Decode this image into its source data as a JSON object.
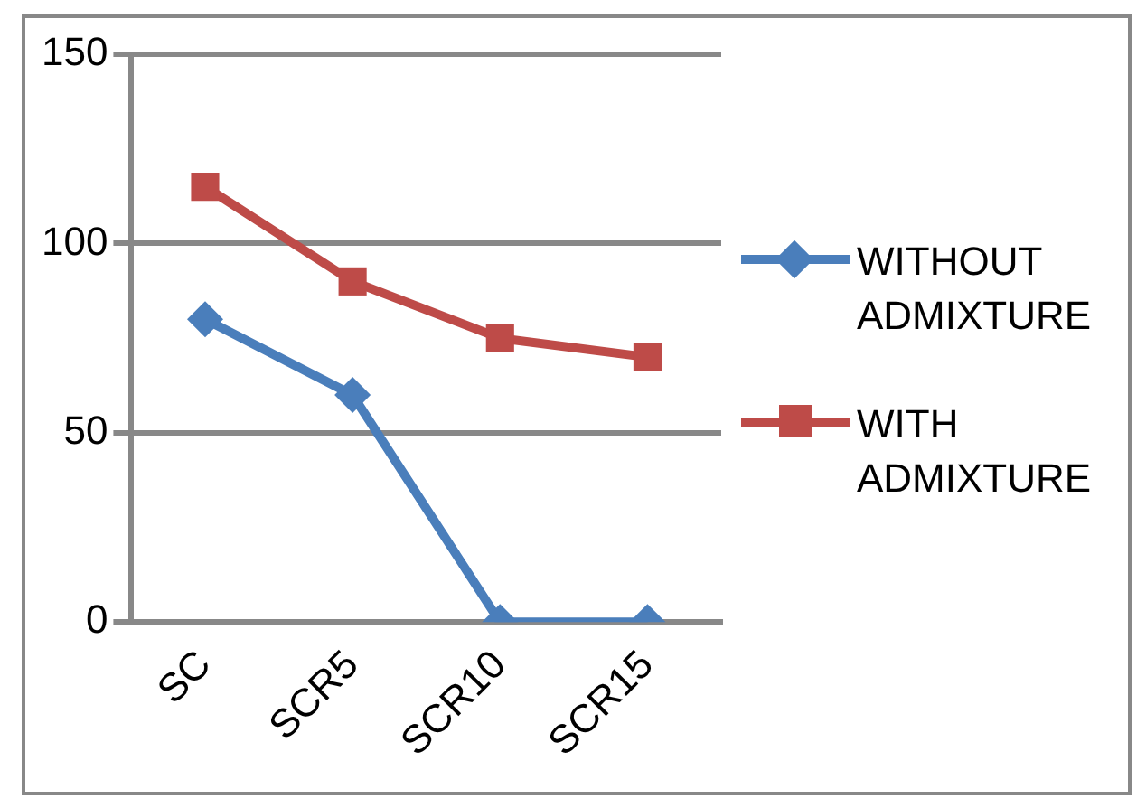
{
  "chart_data": {
    "type": "line",
    "categories": [
      "SC",
      "SCR5",
      "SCR10",
      "SCR15"
    ],
    "series": [
      {
        "name": "WITHOUT ADMIXTURE",
        "color": "#4a7ebb",
        "values": [
          80,
          60,
          0,
          0
        ],
        "marker": "diamond"
      },
      {
        "name": "WITH ADMIXTURE",
        "color": "#be4b48",
        "values": [
          115,
          90,
          75,
          70
        ],
        "marker": "square"
      }
    ],
    "ylim": [
      0,
      150
    ],
    "yticks": [
      0,
      50,
      100,
      150
    ],
    "grid": "y",
    "legend": "right"
  }
}
